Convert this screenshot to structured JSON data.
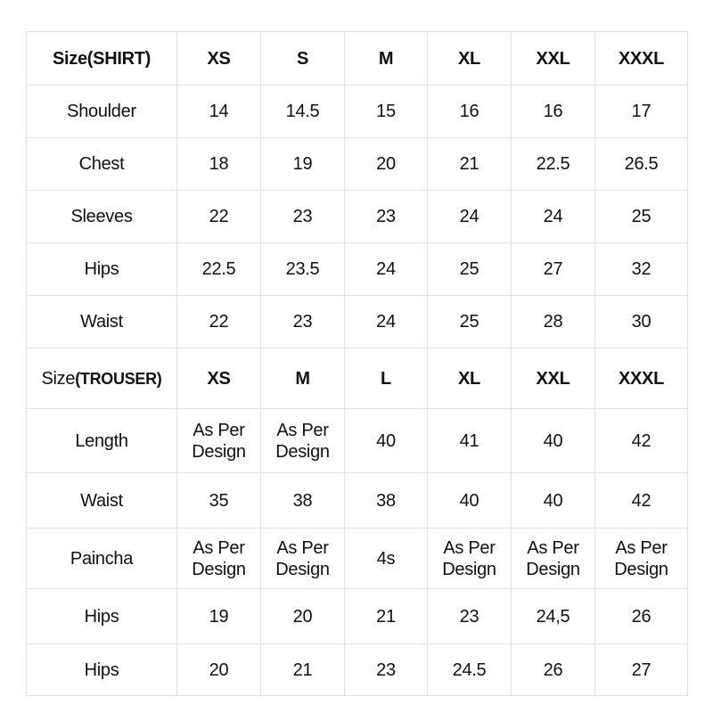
{
  "shirt_table": {
    "header": [
      "Size(SHIRT)",
      "XS",
      "S",
      "M",
      "XL",
      "XXL",
      "XXXL"
    ],
    "rows": [
      [
        "Shoulder",
        "14",
        "14.5",
        "15",
        "16",
        "16",
        "17"
      ],
      [
        "Chest",
        "18",
        "19",
        "20",
        "21",
        "22.5",
        "26.5"
      ],
      [
        "Sleeves",
        "22",
        "23",
        "23",
        "24",
        "24",
        "25"
      ],
      [
        "Hips",
        "22.5",
        "23.5",
        "24",
        "25",
        "27",
        "32"
      ],
      [
        "Waist",
        "22",
        "23",
        "24",
        "25",
        "28",
        "30"
      ]
    ]
  },
  "trouser_table": {
    "header_prefix": "Size",
    "header_suffix": "(TROUSER)",
    "header": [
      "XS",
      "M",
      "L",
      "XL",
      "XXL",
      "XXXL"
    ],
    "rows": [
      [
        "Length",
        "As Per Design",
        "As Per Design",
        "40",
        "41",
        "40",
        "42"
      ],
      [
        "Waist",
        "35",
        "38",
        "38",
        "40",
        "40",
        "42"
      ],
      [
        "Paincha",
        "As Per Design",
        "As Per Design",
        "4s",
        "As Per Design",
        "As Per Design",
        "As Per Design"
      ],
      [
        "Hips",
        "19",
        "20",
        "21",
        "23",
        "24,5",
        "26"
      ],
      [
        "Hips",
        "20",
        "21",
        "23",
        "24.5",
        "26",
        "27"
      ]
    ]
  }
}
